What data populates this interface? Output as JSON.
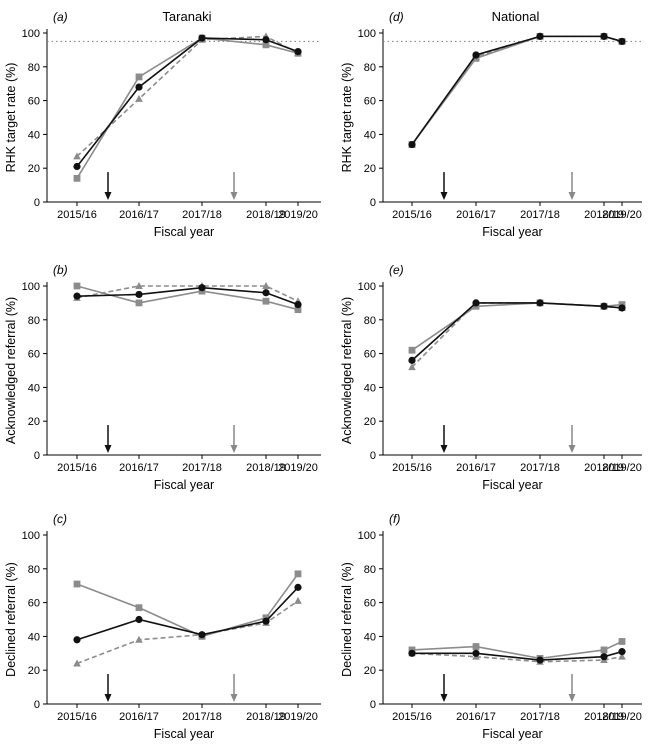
{
  "colors": {
    "black_series": "#111111",
    "grey_series": "#8c8c8c",
    "dashed_series": "#8c8c8c",
    "target_line": "#888888",
    "black_arrow": "#111111",
    "grey_arrow": "#888888"
  },
  "chart_data": [
    {
      "panel": "(a)",
      "title": "Taranaki",
      "type": "line",
      "categories": [
        "2015/16",
        "2016/17",
        "2017/18",
        "2018/19",
        "2019/20"
      ],
      "xlabel": "Fiscal year",
      "ylabel": "RHK target rate (%)",
      "ylim": [
        0,
        100
      ],
      "yticks": [
        0,
        20,
        40,
        60,
        80,
        100
      ],
      "target_line": 95,
      "arrows": [
        {
          "color": "black",
          "x": 0.5
        },
        {
          "color": "grey",
          "x": 2.5
        }
      ],
      "series": [
        {
          "marker": "circle",
          "color": "black",
          "dashed": false,
          "values": [
            21,
            68,
            97,
            96,
            89
          ]
        },
        {
          "marker": "square",
          "color": "grey",
          "dashed": false,
          "values": [
            14,
            74,
            97,
            93,
            88
          ]
        },
        {
          "marker": "triangle",
          "color": "grey",
          "dashed": true,
          "values": [
            27,
            61,
            96,
            98,
            88
          ]
        }
      ]
    },
    {
      "panel": "(d)",
      "title": "National",
      "type": "line",
      "categories": [
        "2015/16",
        "2016/17",
        "2017/18",
        "2018/19",
        "2019/20"
      ],
      "xlabel": "Fiscal year",
      "ylabel": "RHK target rate (%)",
      "ylim": [
        0,
        100
      ],
      "yticks": [
        0,
        20,
        40,
        60,
        80,
        100
      ],
      "target_line": 95,
      "arrows": [
        {
          "color": "black",
          "x": 0.5
        },
        {
          "color": "grey",
          "x": 2.5
        }
      ],
      "series": [
        {
          "marker": "circle",
          "color": "black",
          "dashed": false,
          "values": [
            34,
            87,
            98,
            98,
            95
          ]
        },
        {
          "marker": "square",
          "color": "grey",
          "dashed": false,
          "values": [
            34,
            85,
            98,
            98,
            95
          ]
        },
        {
          "marker": "triangle",
          "color": "grey",
          "dashed": true,
          "values": [
            34,
            86,
            98,
            98,
            95
          ]
        }
      ]
    },
    {
      "panel": "(b)",
      "title": "",
      "type": "line",
      "categories": [
        "2015/16",
        "2016/17",
        "2017/18",
        "2018/19",
        "2019/20"
      ],
      "xlabel": "Fiscal year",
      "ylabel": "Acknowledged referral (%)",
      "ylim": [
        0,
        100
      ],
      "yticks": [
        0,
        20,
        40,
        60,
        80,
        100
      ],
      "arrows": [
        {
          "color": "black",
          "x": 0.5
        },
        {
          "color": "grey",
          "x": 2.5
        }
      ],
      "series": [
        {
          "marker": "circle",
          "color": "black",
          "dashed": false,
          "values": [
            94,
            95,
            99,
            96,
            89
          ]
        },
        {
          "marker": "square",
          "color": "grey",
          "dashed": false,
          "values": [
            100,
            90,
            97,
            91,
            86
          ]
        },
        {
          "marker": "triangle",
          "color": "grey",
          "dashed": true,
          "values": [
            93,
            100,
            100,
            100,
            91
          ]
        }
      ]
    },
    {
      "panel": "(e)",
      "title": "",
      "type": "line",
      "categories": [
        "2015/16",
        "2016/17",
        "2017/18",
        "2018/19",
        "2019/20"
      ],
      "xlabel": "Fiscal year",
      "ylabel": "Acknowledged referral (%)",
      "ylim": [
        0,
        100
      ],
      "yticks": [
        0,
        20,
        40,
        60,
        80,
        100
      ],
      "arrows": [
        {
          "color": "black",
          "x": 0.5
        },
        {
          "color": "grey",
          "x": 2.5
        }
      ],
      "series": [
        {
          "marker": "circle",
          "color": "black",
          "dashed": false,
          "values": [
            56,
            90,
            90,
            88,
            87
          ]
        },
        {
          "marker": "square",
          "color": "grey",
          "dashed": false,
          "values": [
            62,
            88,
            90,
            88,
            89
          ]
        },
        {
          "marker": "triangle",
          "color": "grey",
          "dashed": true,
          "values": [
            52,
            90,
            90,
            88,
            87
          ]
        }
      ]
    },
    {
      "panel": "(c)",
      "title": "",
      "type": "line",
      "categories": [
        "2015/16",
        "2016/17",
        "2017/18",
        "2018/19",
        "2019/20"
      ],
      "xlabel": "Fiscal year",
      "ylabel": "Declined referral (%)",
      "ylim": [
        0,
        100
      ],
      "yticks": [
        0,
        20,
        40,
        60,
        80,
        100
      ],
      "arrows": [
        {
          "color": "black",
          "x": 0.5
        },
        {
          "color": "grey",
          "x": 2.5
        }
      ],
      "series": [
        {
          "marker": "circle",
          "color": "black",
          "dashed": false,
          "values": [
            38,
            50,
            41,
            49,
            69
          ]
        },
        {
          "marker": "square",
          "color": "grey",
          "dashed": false,
          "values": [
            71,
            57,
            40,
            51,
            77
          ]
        },
        {
          "marker": "triangle",
          "color": "grey",
          "dashed": true,
          "values": [
            24,
            38,
            41,
            48,
            61
          ]
        }
      ]
    },
    {
      "panel": "(f)",
      "title": "",
      "type": "line",
      "categories": [
        "2015/16",
        "2016/17",
        "2017/18",
        "2018/19",
        "2019/20"
      ],
      "xlabel": "Fiscal year",
      "ylabel": "Declined referral (%)",
      "ylim": [
        0,
        100
      ],
      "yticks": [
        0,
        20,
        40,
        60,
        80,
        100
      ],
      "arrows": [
        {
          "color": "black",
          "x": 0.5
        },
        {
          "color": "grey",
          "x": 2.5
        }
      ],
      "series": [
        {
          "marker": "circle",
          "color": "black",
          "dashed": false,
          "values": [
            30,
            30,
            26,
            28,
            31
          ]
        },
        {
          "marker": "square",
          "color": "grey",
          "dashed": false,
          "values": [
            32,
            34,
            27,
            32,
            37
          ]
        },
        {
          "marker": "triangle",
          "color": "grey",
          "dashed": true,
          "values": [
            30,
            28,
            25,
            26,
            28
          ]
        }
      ]
    }
  ]
}
